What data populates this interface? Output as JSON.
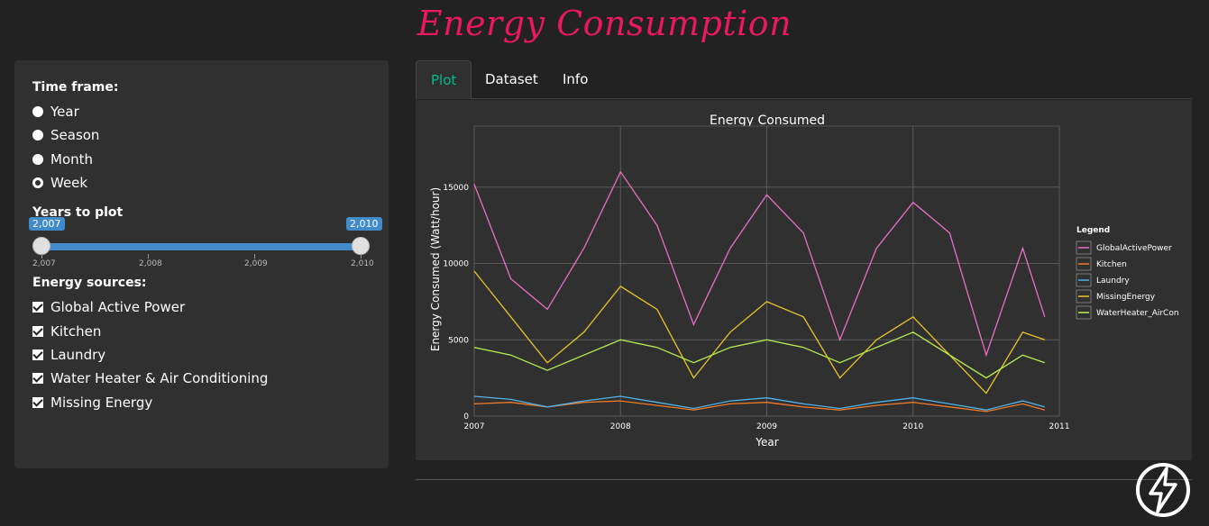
{
  "app": {
    "title": "Energy Consumption"
  },
  "sidebar": {
    "timeframe_label": "Time frame:",
    "timeframe_options": [
      "Year",
      "Season",
      "Month",
      "Week"
    ],
    "timeframe_selected": "Week",
    "years_label": "Years to plot",
    "years_range": {
      "from": "2,007",
      "to": "2,010"
    },
    "years_ticks": [
      "2,007",
      "2,008",
      "2,009",
      "2,010"
    ],
    "sources_label": "Energy sources:",
    "sources": [
      "Global Active Power",
      "Kitchen",
      "Laundry",
      "Water Heater & Air Conditioning",
      "Missing Energy"
    ]
  },
  "tabs": [
    {
      "label": "Plot",
      "active": true
    },
    {
      "label": "Dataset",
      "active": false
    },
    {
      "label": "Info",
      "active": false
    }
  ],
  "colors": {
    "accent": "#00bc8c",
    "title": "#e8195c",
    "slider": "#428bca",
    "GlobalActivePower": "#e86fc8",
    "Kitchen": "#f07a28",
    "Laundry": "#4fb3e8",
    "MissingEnergy": "#e8c52a",
    "WaterHeater_AirCon": "#b8f050"
  },
  "chart_data": {
    "type": "line",
    "title": "Energy Consumed",
    "xlabel": "Year",
    "ylabel": "Energy Consumed (Watt/hour)",
    "xlim": [
      2007,
      2011
    ],
    "ylim": [
      0,
      19000
    ],
    "xticks": [
      "2007",
      "2008",
      "2009",
      "2010",
      "2011"
    ],
    "yticks": [
      "0",
      "5000",
      "10000",
      "15000"
    ],
    "grid": true,
    "legend": {
      "title": "Legend",
      "placement": "right"
    },
    "x": [
      2007.0,
      2007.25,
      2007.5,
      2007.75,
      2008.0,
      2008.25,
      2008.5,
      2008.75,
      2009.0,
      2009.25,
      2009.5,
      2009.75,
      2010.0,
      2010.25,
      2010.5,
      2010.75,
      2010.9
    ],
    "series": [
      {
        "name": "GlobalActivePower",
        "values": [
          15200,
          9000,
          7000,
          11000,
          16000,
          12500,
          6000,
          11000,
          14500,
          12000,
          5000,
          11000,
          14000,
          12000,
          4000,
          11000,
          6500
        ]
      },
      {
        "name": "Kitchen",
        "values": [
          800,
          900,
          600,
          900,
          1000,
          700,
          400,
          800,
          900,
          600,
          400,
          700,
          900,
          600,
          300,
          800,
          400
        ]
      },
      {
        "name": "Laundry",
        "values": [
          1300,
          1100,
          600,
          1000,
          1300,
          900,
          500,
          1000,
          1200,
          800,
          500,
          900,
          1200,
          800,
          400,
          1000,
          600
        ]
      },
      {
        "name": "MissingEnergy",
        "values": [
          9500,
          6500,
          3500,
          5500,
          8500,
          7000,
          2500,
          5500,
          7500,
          6500,
          2500,
          5000,
          6500,
          4000,
          1500,
          5500,
          5000
        ]
      },
      {
        "name": "WaterHeater_AirCon",
        "values": [
          4500,
          4000,
          3000,
          4000,
          5000,
          4500,
          3500,
          4500,
          5000,
          4500,
          3500,
          4500,
          5500,
          4000,
          2500,
          4000,
          3500
        ]
      }
    ]
  }
}
